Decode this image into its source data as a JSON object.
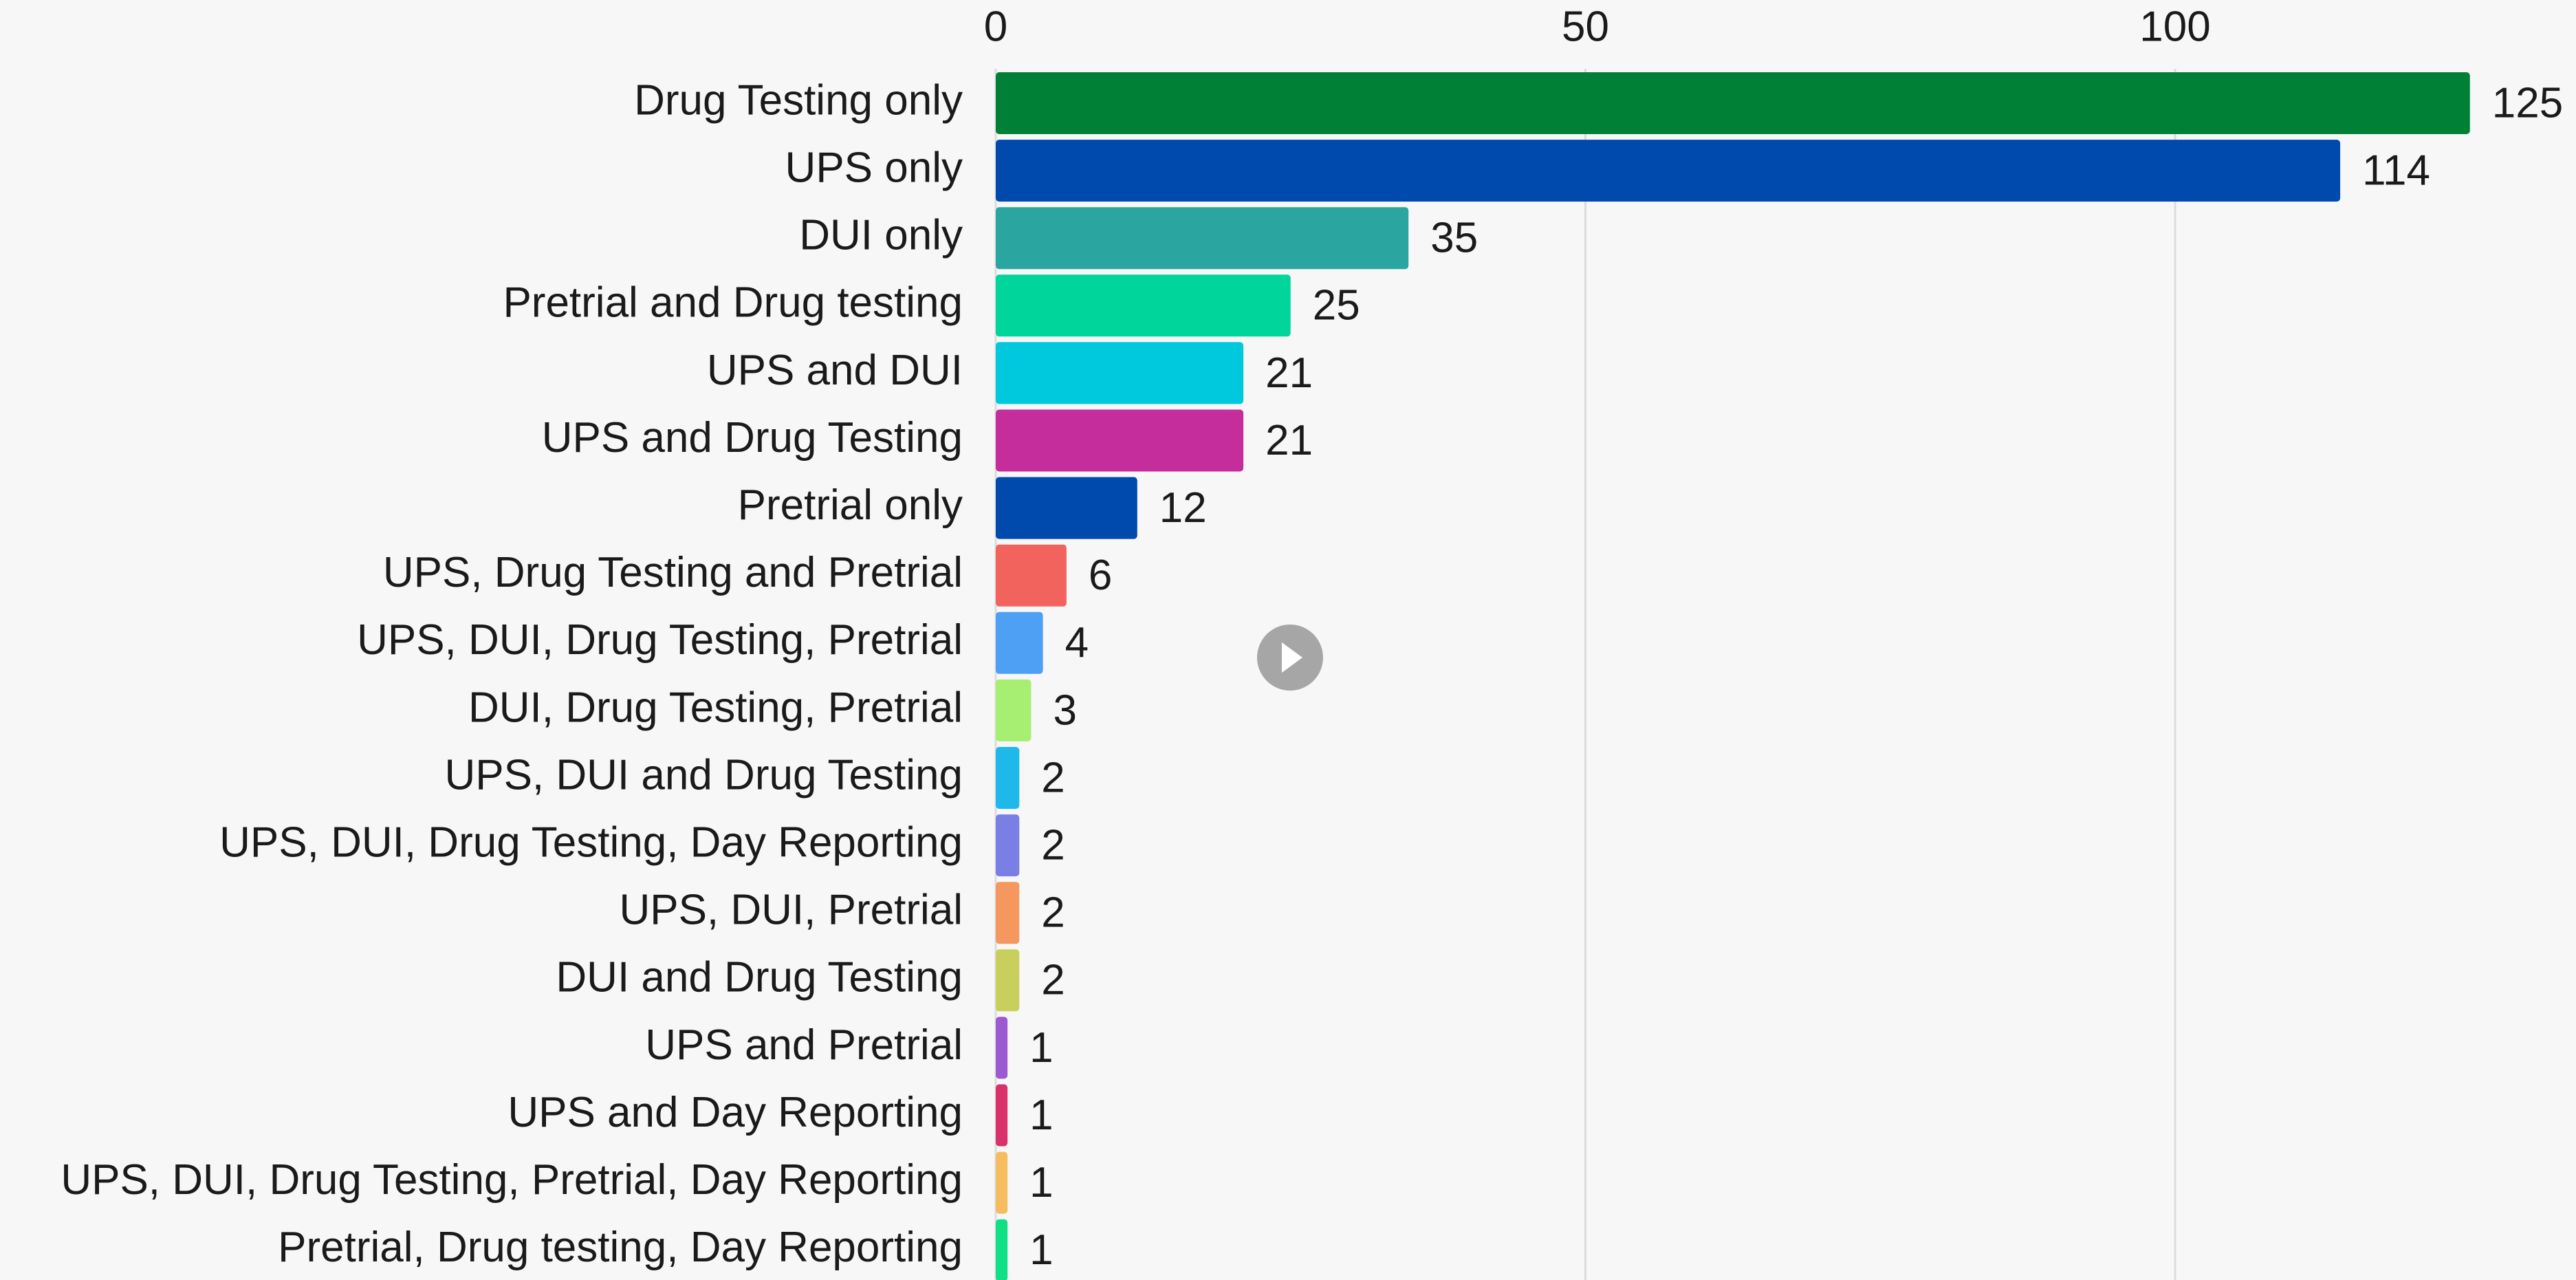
{
  "chart_data": {
    "type": "barh",
    "categories": [
      "Drug Testing only",
      "UPS only",
      "DUI only",
      "Pretrial and Drug testing",
      "UPS and DUI",
      "UPS and Drug Testing",
      "Pretrial only",
      "UPS, Drug Testing and Pretrial",
      "UPS, DUI, Drug Testing, Pretrial",
      "DUI, Drug Testing, Pretrial",
      "UPS, DUI and Drug Testing",
      "UPS, DUI, Drug Testing, Day Reporting",
      "UPS, DUI, Pretrial",
      "DUI and Drug Testing",
      "UPS and Pretrial",
      "UPS and Day Reporting",
      "UPS, DUI, Drug Testing, Pretrial, Day Reporting",
      "Pretrial, Drug testing, Day Reporting"
    ],
    "values": [
      125,
      114,
      35,
      25,
      21,
      21,
      12,
      6,
      4,
      3,
      2,
      2,
      2,
      2,
      1,
      1,
      1,
      1
    ],
    "colors": [
      "#008037",
      "#004aad",
      "#2aa59f",
      "#00d59b",
      "#00c9de",
      "#c42d9b",
      "#004aad",
      "#f2635d",
      "#4da0f3",
      "#a6ef73",
      "#1eb8eb",
      "#7a7fe6",
      "#f5985f",
      "#c8cf5c",
      "#9c59d1",
      "#d9316a",
      "#f5bd60",
      "#0fe084"
    ],
    "xlim": [
      0,
      134
    ],
    "xticks": [
      0,
      50,
      100
    ],
    "grid": true
  }
}
